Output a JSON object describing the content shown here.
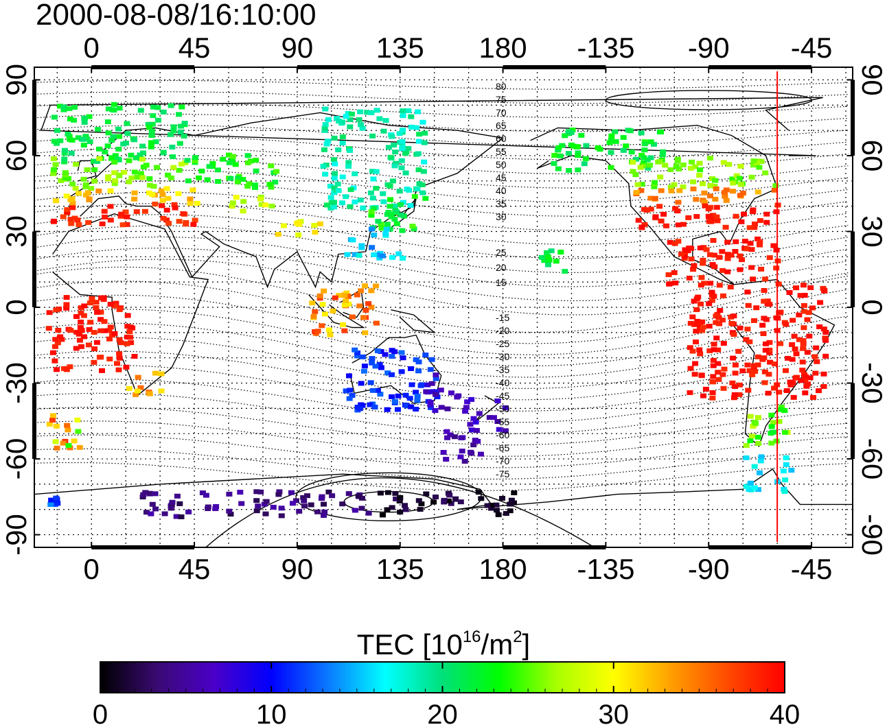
{
  "title": "2000-08-08/16:10:00",
  "axes": {
    "x_ticks": [
      "0",
      "45",
      "90",
      "135",
      "180",
      "-135",
      "-90",
      "-45"
    ],
    "x_tick_values": [
      0,
      45,
      90,
      135,
      180,
      225,
      270,
      315
    ],
    "y_ticks": [
      "90",
      "60",
      "30",
      "0",
      "-30",
      "-60",
      "-90"
    ],
    "y_tick_values": [
      90,
      60,
      30,
      0,
      -30,
      -60,
      -90
    ],
    "lon_range": [
      -25,
      333
    ],
    "lat_range": [
      -95,
      95
    ]
  },
  "magnetic_contours": {
    "north_labels": [
      "80",
      "75",
      "70",
      "65",
      "60",
      "55",
      "50",
      "45",
      "40",
      "35",
      "30",
      "25",
      "20",
      "15"
    ],
    "south_labels": [
      "-15",
      "-20",
      "-25",
      "-30",
      "-35",
      "-40",
      "-45",
      "-50",
      "-55",
      "-60",
      "-65",
      "-70",
      "-75"
    ]
  },
  "terminator_meridian": 300,
  "colorbar": {
    "title": "TEC  [10",
    "exponent": "16",
    "unit_mid": "/m",
    "unit_exp": "2",
    "unit_end": "]",
    "ticks": [
      "0",
      "10",
      "20",
      "30",
      "40"
    ],
    "tick_values": [
      0,
      10,
      20,
      30,
      40
    ],
    "range": [
      0,
      40
    ],
    "colors": [
      "#000000",
      "#3a0a73",
      "#4a00c8",
      "#0000ff",
      "#0a7aff",
      "#00ffff",
      "#00e07a",
      "#00ff00",
      "#a8ff00",
      "#ffff00",
      "#ffa000",
      "#ff4a00",
      "#ff0000"
    ]
  },
  "tec_regions": [
    {
      "lon": [
        -18,
        40
      ],
      "lat": [
        58,
        82
      ],
      "tec": [
        20,
        23
      ]
    },
    {
      "lon": [
        -18,
        40
      ],
      "lat": [
        48,
        60
      ],
      "tec": [
        24,
        28
      ]
    },
    {
      "lon": [
        -18,
        45
      ],
      "lat": [
        42,
        48
      ],
      "tec": [
        30,
        34
      ]
    },
    {
      "lon": [
        -18,
        45
      ],
      "lat": [
        33,
        42
      ],
      "tec": [
        37,
        40
      ]
    },
    {
      "lon": [
        40,
        80
      ],
      "lat": [
        48,
        62
      ],
      "tec": [
        21,
        25
      ]
    },
    {
      "lon": [
        60,
        80
      ],
      "lat": [
        38,
        45
      ],
      "tec": [
        26,
        30
      ]
    },
    {
      "lon": [
        80,
        100
      ],
      "lat": [
        28,
        35
      ],
      "tec": [
        28,
        32
      ]
    },
    {
      "lon": [
        100,
        145
      ],
      "lat": [
        40,
        80
      ],
      "tec": [
        17,
        21
      ]
    },
    {
      "lon": [
        118,
        145
      ],
      "lat": [
        30,
        45
      ],
      "tec": [
        20,
        25
      ]
    },
    {
      "lon": [
        110,
        135
      ],
      "lat": [
        20,
        32
      ],
      "tec": [
        13,
        18
      ]
    },
    {
      "lon": [
        95,
        125
      ],
      "lat": [
        -10,
        10
      ],
      "tec": [
        30,
        38
      ]
    },
    {
      "lon": [
        110,
        150
      ],
      "lat": [
        -40,
        -15
      ],
      "tec": [
        9,
        13
      ]
    },
    {
      "lon": [
        145,
        160
      ],
      "lat": [
        -40,
        -25
      ],
      "tec": [
        5,
        8
      ]
    },
    {
      "lon": [
        162,
        180
      ],
      "lat": [
        -48,
        -35
      ],
      "tec": [
        5,
        8
      ]
    },
    {
      "lon": [
        150,
        170
      ],
      "lat": [
        -60,
        -48
      ],
      "tec": [
        4,
        7
      ]
    },
    {
      "lon": [
        -22,
        -15
      ],
      "lat": [
        -80,
        -72
      ],
      "tec": [
        10,
        14
      ]
    },
    {
      "lon": [
        20,
        120
      ],
      "lat": [
        -82,
        -72
      ],
      "tec": [
        2,
        6
      ]
    },
    {
      "lon": [
        125,
        185
      ],
      "lat": [
        -82,
        -72
      ],
      "tec": [
        0,
        3
      ]
    },
    {
      "lon": [
        200,
        250
      ],
      "lat": [
        55,
        72
      ],
      "tec": [
        20,
        24
      ]
    },
    {
      "lon": [
        235,
        300
      ],
      "lat": [
        48,
        60
      ],
      "tec": [
        24,
        28
      ]
    },
    {
      "lon": [
        235,
        300
      ],
      "lat": [
        42,
        48
      ],
      "tec": [
        32,
        36
      ]
    },
    {
      "lon": [
        235,
        300
      ],
      "lat": [
        32,
        42
      ],
      "tec": [
        38,
        40
      ]
    },
    {
      "lon": [
        250,
        300
      ],
      "lat": [
        10,
        28
      ],
      "tec": [
        38,
        40
      ]
    },
    {
      "lon": [
        260,
        320
      ],
      "lat": [
        -35,
        10
      ],
      "tec": [
        38,
        40
      ]
    },
    {
      "lon": [
        285,
        305
      ],
      "lat": [
        -55,
        -38
      ],
      "tec": [
        22,
        28
      ]
    },
    {
      "lon": [
        285,
        305
      ],
      "lat": [
        -72,
        -58
      ],
      "tec": [
        15,
        18
      ]
    },
    {
      "lon": [
        195,
        210
      ],
      "lat": [
        15,
        25
      ],
      "tec": [
        20,
        23
      ]
    },
    {
      "lon": [
        -20,
        20
      ],
      "lat": [
        -25,
        5
      ],
      "tec": [
        38,
        40
      ]
    },
    {
      "lon": [
        15,
        30
      ],
      "lat": [
        -35,
        -25
      ],
      "tec": [
        30,
        36
      ]
    },
    {
      "lon": [
        -20,
        -5
      ],
      "lat": [
        -55,
        -40
      ],
      "tec": [
        24,
        38
      ]
    }
  ]
}
